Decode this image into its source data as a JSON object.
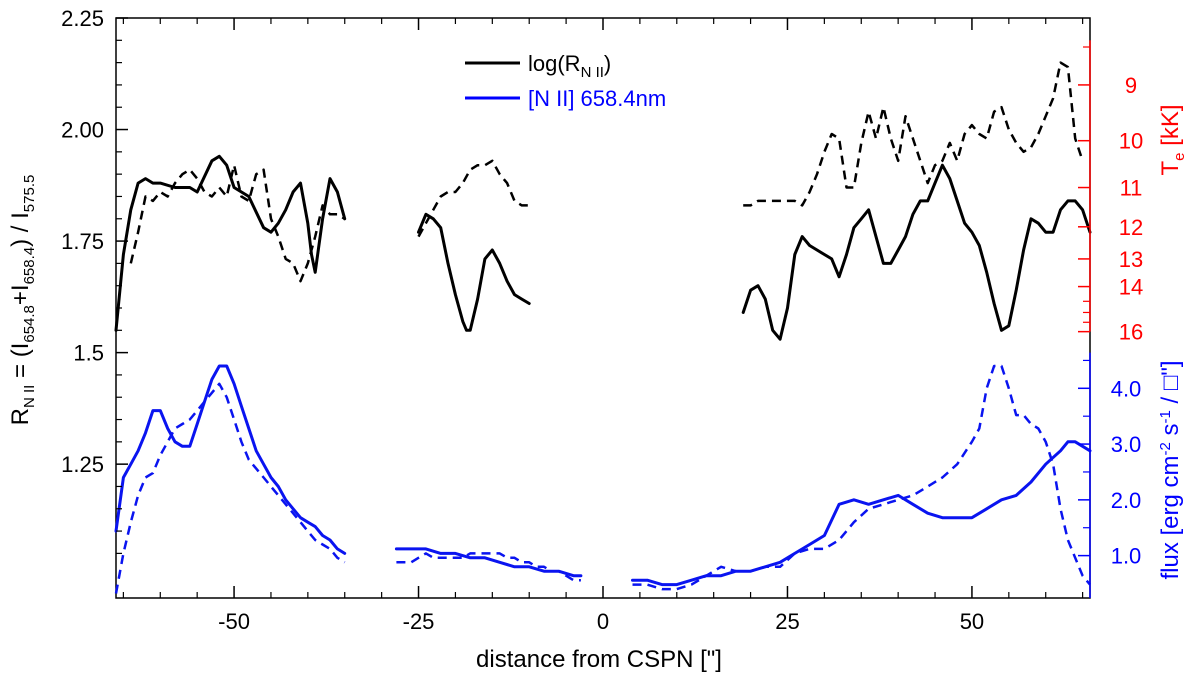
{
  "chart_data": {
    "type": "line",
    "title": "",
    "xlabel": "distance from CSPN [\"]",
    "ylabel_left": {
      "main": "R",
      "sub1": "N II",
      "mid1": " = (I",
      "sub2": "654.8",
      "mid2": "+I",
      "sub3": "658.4",
      "mid3": ") / I",
      "sub4": "575.5"
    },
    "ylabel_te": {
      "main": "T",
      "sub": "e",
      "rest": " [kK]"
    },
    "ylabel_flux": {
      "text": "flux [erg cm",
      "sup1": "-2",
      "mid": " s",
      "sup2": "-1",
      "rest": " / □\"]"
    },
    "xlim": [
      -66,
      66
    ],
    "ylim_left": [
      0.95,
      2.25
    ],
    "x_ticks": [
      -50,
      -25,
      0,
      25,
      50
    ],
    "x_tick_labels": [
      "-50",
      "-25",
      "0",
      "25",
      "50"
    ],
    "y_ticks_left": [
      1.25,
      1.5,
      1.75,
      2.0,
      2.25
    ],
    "y_tick_labels_left": [
      "1.25",
      "1.5",
      "1.75",
      "2.00",
      "2.25"
    ],
    "te_ticks": [
      {
        "label": "9",
        "ratio": 2.1
      },
      {
        "label": "10",
        "ratio": 1.975
      },
      {
        "label": "11",
        "ratio": 1.87
      },
      {
        "label": "12",
        "ratio": 1.782
      },
      {
        "label": "13",
        "ratio": 1.71
      },
      {
        "label": "14",
        "ratio": 1.648
      },
      {
        "label": "16",
        "ratio": 1.547
      }
    ],
    "te_minor_ratios": [
      2.185,
      1.615,
      1.59,
      1.568
    ],
    "flux_ticks": [
      {
        "label": "1.0",
        "ratio": 1.045
      },
      {
        "label": "2.0",
        "ratio": 1.17
      },
      {
        "label": "3.0",
        "ratio": 1.295
      },
      {
        "label": "4.0",
        "ratio": 1.42
      }
    ],
    "flux_minor_ratios": [
      1.1075,
      1.2325,
      1.3575,
      1.4825
    ],
    "legend": [
      {
        "label": "log(R",
        "sub": "N II",
        "close": ")",
        "color": "#000000"
      },
      {
        "label": "[N II] 658.4nm",
        "sub": "",
        "close": "",
        "color": "#0000ff"
      }
    ],
    "colors": {
      "ratio": "#000000",
      "flux": "#0a14f0",
      "te_axis": "#ff0000",
      "flux_axis": "#0000ff"
    },
    "series": [
      {
        "name": "log(R_NII) solid left",
        "color": "#000000",
        "dash": "solid",
        "x": [
          -66,
          -65,
          -64,
          -63,
          -62,
          -61,
          -60,
          -58,
          -56,
          -55,
          -53,
          -52,
          -51,
          -50,
          -48,
          -46,
          -45,
          -44,
          -43,
          -42,
          -41,
          -40,
          -39.5,
          -39,
          -38,
          -37,
          -36,
          -35
        ],
        "y": [
          1.55,
          1.72,
          1.82,
          1.88,
          1.89,
          1.88,
          1.88,
          1.87,
          1.87,
          1.86,
          1.93,
          1.94,
          1.92,
          1.87,
          1.85,
          1.78,
          1.77,
          1.79,
          1.82,
          1.86,
          1.88,
          1.79,
          1.72,
          1.68,
          1.8,
          1.89,
          1.86,
          1.8
        ]
      },
      {
        "name": "log(R_NII) dashed left",
        "color": "#000000",
        "dash": "dashed",
        "x": [
          -64,
          -63,
          -62,
          -61,
          -60,
          -59,
          -58,
          -57,
          -56,
          -55,
          -54,
          -53,
          -52,
          -51,
          -50,
          -49,
          -48,
          -47,
          -46,
          -45,
          -44,
          -43,
          -42,
          -41,
          -40,
          -39,
          -38,
          -37,
          -36,
          -35
        ],
        "y": [
          1.7,
          1.77,
          1.85,
          1.84,
          1.86,
          1.85,
          1.88,
          1.9,
          1.91,
          1.89,
          1.86,
          1.85,
          1.87,
          1.85,
          1.92,
          1.85,
          1.84,
          1.9,
          1.91,
          1.8,
          1.76,
          1.71,
          1.7,
          1.66,
          1.7,
          1.76,
          1.83,
          1.81,
          1.81,
          1.8
        ]
      },
      {
        "name": "log(R_NII) solid mid",
        "color": "#000000",
        "dash": "solid",
        "x": [
          -25,
          -24,
          -23,
          -22,
          -21,
          -20,
          -19,
          -18.5,
          -18,
          -17,
          -16,
          -15,
          -14,
          -13,
          -12,
          -11,
          -10
        ],
        "y": [
          1.77,
          1.81,
          1.8,
          1.78,
          1.7,
          1.63,
          1.57,
          1.55,
          1.55,
          1.62,
          1.71,
          1.73,
          1.7,
          1.66,
          1.63,
          1.62,
          1.61
        ]
      },
      {
        "name": "log(R_NII) dashed mid",
        "color": "#000000",
        "dash": "dashed",
        "x": [
          -25,
          -24,
          -23,
          -22,
          -21,
          -20,
          -19,
          -18,
          -17,
          -16,
          -15,
          -14,
          -13,
          -12,
          -11,
          -10
        ],
        "y": [
          1.76,
          1.79,
          1.82,
          1.85,
          1.86,
          1.86,
          1.88,
          1.91,
          1.92,
          1.92,
          1.93,
          1.9,
          1.88,
          1.84,
          1.83,
          1.83
        ]
      },
      {
        "name": "log(R_NII) solid right",
        "color": "#000000",
        "dash": "solid",
        "x": [
          19,
          20,
          21,
          22,
          23,
          24,
          25,
          26,
          27,
          28,
          29,
          30,
          31,
          32,
          33,
          34,
          35,
          36,
          37,
          38,
          39,
          40,
          41,
          42,
          43,
          44,
          45,
          46,
          47,
          48,
          49,
          50,
          51,
          52,
          53,
          54,
          55,
          56,
          57,
          58,
          59,
          60,
          61,
          62,
          63,
          64,
          65,
          66
        ],
        "y": [
          1.59,
          1.64,
          1.65,
          1.62,
          1.55,
          1.53,
          1.6,
          1.72,
          1.76,
          1.74,
          1.73,
          1.72,
          1.71,
          1.67,
          1.72,
          1.78,
          1.8,
          1.82,
          1.76,
          1.7,
          1.7,
          1.73,
          1.76,
          1.81,
          1.84,
          1.84,
          1.88,
          1.92,
          1.89,
          1.84,
          1.79,
          1.77,
          1.74,
          1.68,
          1.61,
          1.55,
          1.56,
          1.64,
          1.73,
          1.8,
          1.79,
          1.77,
          1.77,
          1.82,
          1.84,
          1.84,
          1.82,
          1.77
        ]
      },
      {
        "name": "log(R_NII) dashed right",
        "color": "#000000",
        "dash": "dashed",
        "x": [
          19,
          20,
          21,
          22,
          23,
          24,
          25,
          26,
          27,
          28,
          29,
          30,
          31,
          32,
          33,
          34,
          35,
          36,
          37,
          38,
          39,
          40,
          41,
          42,
          43,
          44,
          45,
          46,
          47,
          48,
          49,
          50,
          51,
          52,
          53,
          54,
          55,
          56,
          57,
          58,
          59,
          60,
          61,
          62,
          63,
          64,
          65
        ],
        "y": [
          1.83,
          1.83,
          1.84,
          1.84,
          1.84,
          1.84,
          1.84,
          1.84,
          1.83,
          1.86,
          1.9,
          1.95,
          1.99,
          1.98,
          1.87,
          1.87,
          1.97,
          2.04,
          1.98,
          2.05,
          1.98,
          1.93,
          2.03,
          1.98,
          1.93,
          1.88,
          1.92,
          1.93,
          1.97,
          1.93,
          1.99,
          2.01,
          1.99,
          1.98,
          2.04,
          2.05,
          2.0,
          1.97,
          1.95,
          1.96,
          1.99,
          2.03,
          2.07,
          2.15,
          2.14,
          1.98,
          1.93
        ]
      },
      {
        "name": "[N II] solid left",
        "color": "#0a14f0",
        "dash": "solid",
        "x": [
          -66,
          -65,
          -64,
          -63,
          -62,
          -61,
          -60,
          -59,
          -58,
          -57,
          -56,
          -55,
          -54,
          -53,
          -52,
          -51,
          -50,
          -49,
          -48,
          -47,
          -46,
          -45,
          -44,
          -43,
          -42,
          -41,
          -40,
          -39,
          -38,
          -37,
          -36,
          -35
        ],
        "y": [
          1.1,
          1.22,
          1.25,
          1.28,
          1.32,
          1.37,
          1.37,
          1.33,
          1.3,
          1.29,
          1.29,
          1.34,
          1.39,
          1.44,
          1.47,
          1.47,
          1.43,
          1.38,
          1.33,
          1.28,
          1.25,
          1.22,
          1.2,
          1.17,
          1.15,
          1.13,
          1.12,
          1.11,
          1.09,
          1.08,
          1.06,
          1.05
        ]
      },
      {
        "name": "[N II] dashed left",
        "color": "#0a14f0",
        "dash": "dashed",
        "x": [
          -66,
          -65,
          -64,
          -63,
          -62,
          -61,
          -60,
          -59,
          -58,
          -57,
          -56,
          -55,
          -54,
          -53,
          -52,
          -51,
          -50,
          -49,
          -48,
          -47,
          -46,
          -45,
          -44,
          -43,
          -42,
          -41,
          -40,
          -39,
          -38,
          -37,
          -36,
          -35
        ],
        "y": [
          0.96,
          1.05,
          1.12,
          1.18,
          1.22,
          1.23,
          1.27,
          1.3,
          1.33,
          1.34,
          1.35,
          1.37,
          1.39,
          1.41,
          1.43,
          1.4,
          1.35,
          1.3,
          1.26,
          1.24,
          1.22,
          1.2,
          1.18,
          1.16,
          1.14,
          1.12,
          1.1,
          1.08,
          1.07,
          1.06,
          1.04,
          1.03
        ]
      },
      {
        "name": "[N II] solid mid",
        "color": "#0a14f0",
        "dash": "solid",
        "x": [
          -28,
          -26,
          -24,
          -22,
          -20,
          -18,
          -16,
          -14,
          -12,
          -10,
          -8,
          -6,
          -4,
          -3
        ],
        "y": [
          1.06,
          1.06,
          1.06,
          1.05,
          1.05,
          1.04,
          1.04,
          1.03,
          1.02,
          1.02,
          1.01,
          1.01,
          1.0,
          1.0
        ]
      },
      {
        "name": "[N II] dashed mid",
        "color": "#0a14f0",
        "dash": "dashed",
        "x": [
          -28,
          -27,
          -26,
          -25,
          -24,
          -23,
          -22,
          -21,
          -20,
          -19,
          -18,
          -17,
          -16,
          -15,
          -14,
          -13,
          -12,
          -11,
          -10,
          -9,
          -8,
          -7,
          -6,
          -5,
          -4,
          -3
        ],
        "y": [
          1.03,
          1.03,
          1.03,
          1.04,
          1.05,
          1.04,
          1.04,
          1.04,
          1.04,
          1.04,
          1.05,
          1.05,
          1.05,
          1.05,
          1.05,
          1.04,
          1.04,
          1.03,
          1.03,
          1.02,
          1.02,
          1.01,
          1.01,
          1.0,
          0.99,
          0.99
        ]
      },
      {
        "name": "[N II] solid right",
        "color": "#0a14f0",
        "dash": "solid",
        "x": [
          4,
          6,
          8,
          10,
          12,
          14,
          16,
          18,
          20,
          22,
          24,
          26,
          28,
          30,
          32,
          34,
          36,
          38,
          40,
          42,
          44,
          46,
          48,
          50,
          52,
          54,
          56,
          58,
          60,
          62,
          63,
          64,
          65,
          66
        ],
        "y": [
          0.99,
          0.99,
          0.98,
          0.98,
          0.99,
          1.0,
          1.0,
          1.01,
          1.01,
          1.02,
          1.03,
          1.05,
          1.07,
          1.09,
          1.16,
          1.17,
          1.16,
          1.17,
          1.18,
          1.16,
          1.14,
          1.13,
          1.13,
          1.13,
          1.15,
          1.17,
          1.18,
          1.21,
          1.25,
          1.28,
          1.3,
          1.3,
          1.29,
          1.28
        ]
      },
      {
        "name": "[N II] dashed right",
        "color": "#0a14f0",
        "dash": "dashed",
        "x": [
          4,
          6,
          8,
          10,
          12,
          14,
          16,
          18,
          20,
          22,
          24,
          26,
          28,
          30,
          32,
          34,
          36,
          38,
          40,
          42,
          44,
          46,
          48,
          50,
          51,
          52,
          53,
          54,
          55,
          56,
          57,
          58,
          59,
          60,
          61,
          62,
          63,
          64,
          65,
          66
        ],
        "y": [
          0.98,
          0.98,
          0.97,
          0.97,
          0.98,
          1.0,
          1.02,
          1.01,
          1.01,
          1.02,
          1.02,
          1.05,
          1.06,
          1.06,
          1.08,
          1.12,
          1.15,
          1.16,
          1.17,
          1.18,
          1.2,
          1.22,
          1.25,
          1.3,
          1.33,
          1.42,
          1.47,
          1.47,
          1.42,
          1.36,
          1.36,
          1.34,
          1.33,
          1.3,
          1.25,
          1.15,
          1.08,
          1.04,
          1.0,
          0.98
        ]
      }
    ]
  }
}
